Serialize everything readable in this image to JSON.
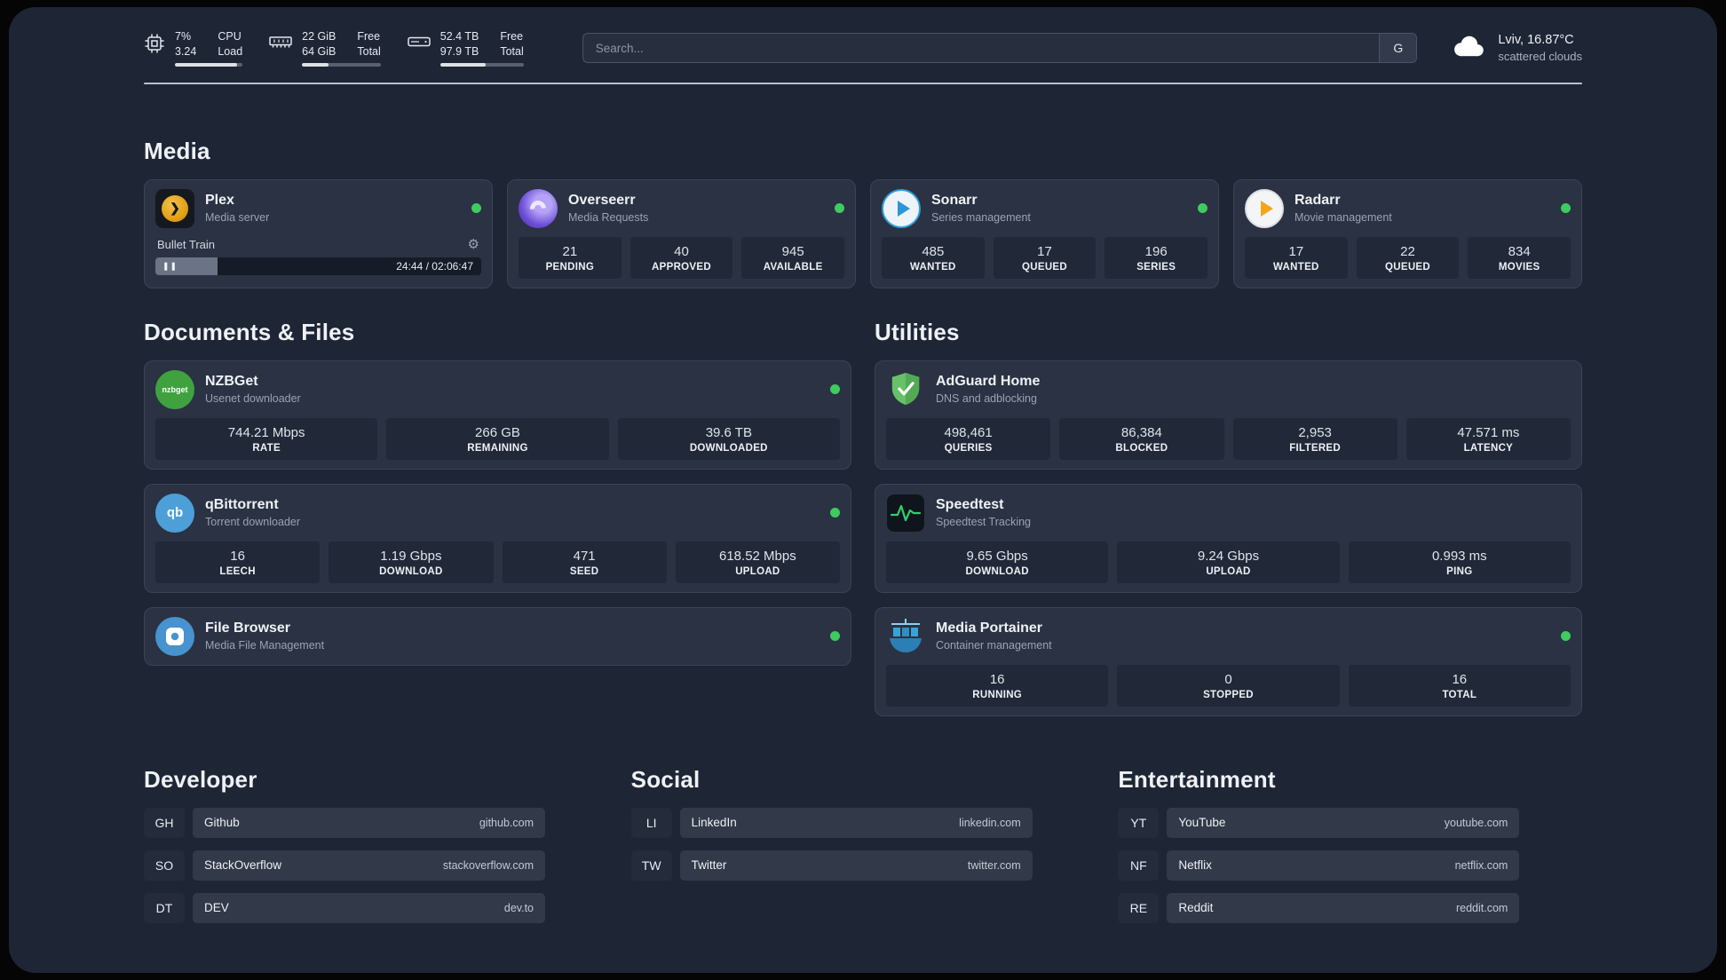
{
  "header": {
    "cpu": {
      "value1": "7%",
      "value2": "3.24",
      "label1": "CPU",
      "label2": "Load",
      "bar_percent": 92
    },
    "memory": {
      "value1": "22 GiB",
      "value2": "64 GiB",
      "label1": "Free",
      "label2": "Total",
      "bar_percent": 34
    },
    "storage": {
      "value1": "52.4 TB",
      "value2": "97.9 TB",
      "label1": "Free",
      "label2": "Total",
      "bar_percent": 54
    },
    "search": {
      "placeholder": "Search...",
      "button": "G"
    },
    "weather": {
      "line1": "Lviv, 16.87°C",
      "line2": "scattered clouds"
    }
  },
  "sections": {
    "media": "Media",
    "documents": "Documents & Files",
    "utilities": "Utilities",
    "developer": "Developer",
    "social": "Social",
    "entertainment": "Entertainment"
  },
  "glyphs": {
    "gear": "⚙",
    "pause": "❚❚",
    "plex_chevron": "❯"
  },
  "apps": {
    "plex": {
      "name": "Plex",
      "desc": "Media server",
      "now_playing": "Bullet Train",
      "time": "24:44 / 02:06:47",
      "progress_percent": 19
    },
    "overseerr": {
      "name": "Overseerr",
      "desc": "Media Requests",
      "stats": [
        {
          "value": "21",
          "label": "PENDING"
        },
        {
          "value": "40",
          "label": "APPROVED"
        },
        {
          "value": "945",
          "label": "AVAILABLE"
        }
      ]
    },
    "sonarr": {
      "name": "Sonarr",
      "desc": "Series management",
      "stats": [
        {
          "value": "485",
          "label": "WANTED"
        },
        {
          "value": "17",
          "label": "QUEUED"
        },
        {
          "value": "196",
          "label": "SERIES"
        }
      ]
    },
    "radarr": {
      "name": "Radarr",
      "desc": "Movie management",
      "stats": [
        {
          "value": "17",
          "label": "WANTED"
        },
        {
          "value": "22",
          "label": "QUEUED"
        },
        {
          "value": "834",
          "label": "MOVIES"
        }
      ]
    },
    "nzbget": {
      "name": "NZBGet",
      "desc": "Usenet downloader",
      "icon_text": "nzbget",
      "stats": [
        {
          "value": "744.21 Mbps",
          "label": "RATE"
        },
        {
          "value": "266 GB",
          "label": "REMAINING"
        },
        {
          "value": "39.6 TB",
          "label": "DOWNLOADED"
        }
      ]
    },
    "qbittorrent": {
      "name": "qBittorrent",
      "desc": "Torrent downloader",
      "icon_text": "qb",
      "stats": [
        {
          "value": "16",
          "label": "LEECH"
        },
        {
          "value": "1.19 Gbps",
          "label": "DOWNLOAD"
        },
        {
          "value": "471",
          "label": "SEED"
        },
        {
          "value": "618.52 Mbps",
          "label": "UPLOAD"
        }
      ]
    },
    "filebrowser": {
      "name": "File Browser",
      "desc": "Media File Management"
    },
    "adguard": {
      "name": "AdGuard Home",
      "desc": "DNS and adblocking",
      "stats": [
        {
          "value": "498,461",
          "label": "QUERIES"
        },
        {
          "value": "86,384",
          "label": "BLOCKED"
        },
        {
          "value": "2,953",
          "label": "FILTERED"
        },
        {
          "value": "47.571 ms",
          "label": "LATENCY"
        }
      ]
    },
    "speedtest": {
      "name": "Speedtest",
      "desc": "Speedtest Tracking",
      "stats": [
        {
          "value": "9.65 Gbps",
          "label": "DOWNLOAD"
        },
        {
          "value": "9.24 Gbps",
          "label": "UPLOAD"
        },
        {
          "value": "0.993 ms",
          "label": "PING"
        }
      ]
    },
    "portainer": {
      "name": "Media Portainer",
      "desc": "Container management",
      "stats": [
        {
          "value": "16",
          "label": "RUNNING"
        },
        {
          "value": "0",
          "label": "STOPPED"
        },
        {
          "value": "16",
          "label": "TOTAL"
        }
      ]
    }
  },
  "links": {
    "developer": [
      {
        "abbr": "GH",
        "name": "Github",
        "domain": "github.com"
      },
      {
        "abbr": "SO",
        "name": "StackOverflow",
        "domain": "stackoverflow.com"
      },
      {
        "abbr": "DT",
        "name": "DEV",
        "domain": "dev.to"
      }
    ],
    "social": [
      {
        "abbr": "LI",
        "name": "LinkedIn",
        "domain": "linkedin.com"
      },
      {
        "abbr": "TW",
        "name": "Twitter",
        "domain": "twitter.com"
      }
    ],
    "entertainment": [
      {
        "abbr": "YT",
        "name": "YouTube",
        "domain": "youtube.com"
      },
      {
        "abbr": "NF",
        "name": "Netflix",
        "domain": "netflix.com"
      },
      {
        "abbr": "RE",
        "name": "Reddit",
        "domain": "reddit.com"
      }
    ]
  }
}
